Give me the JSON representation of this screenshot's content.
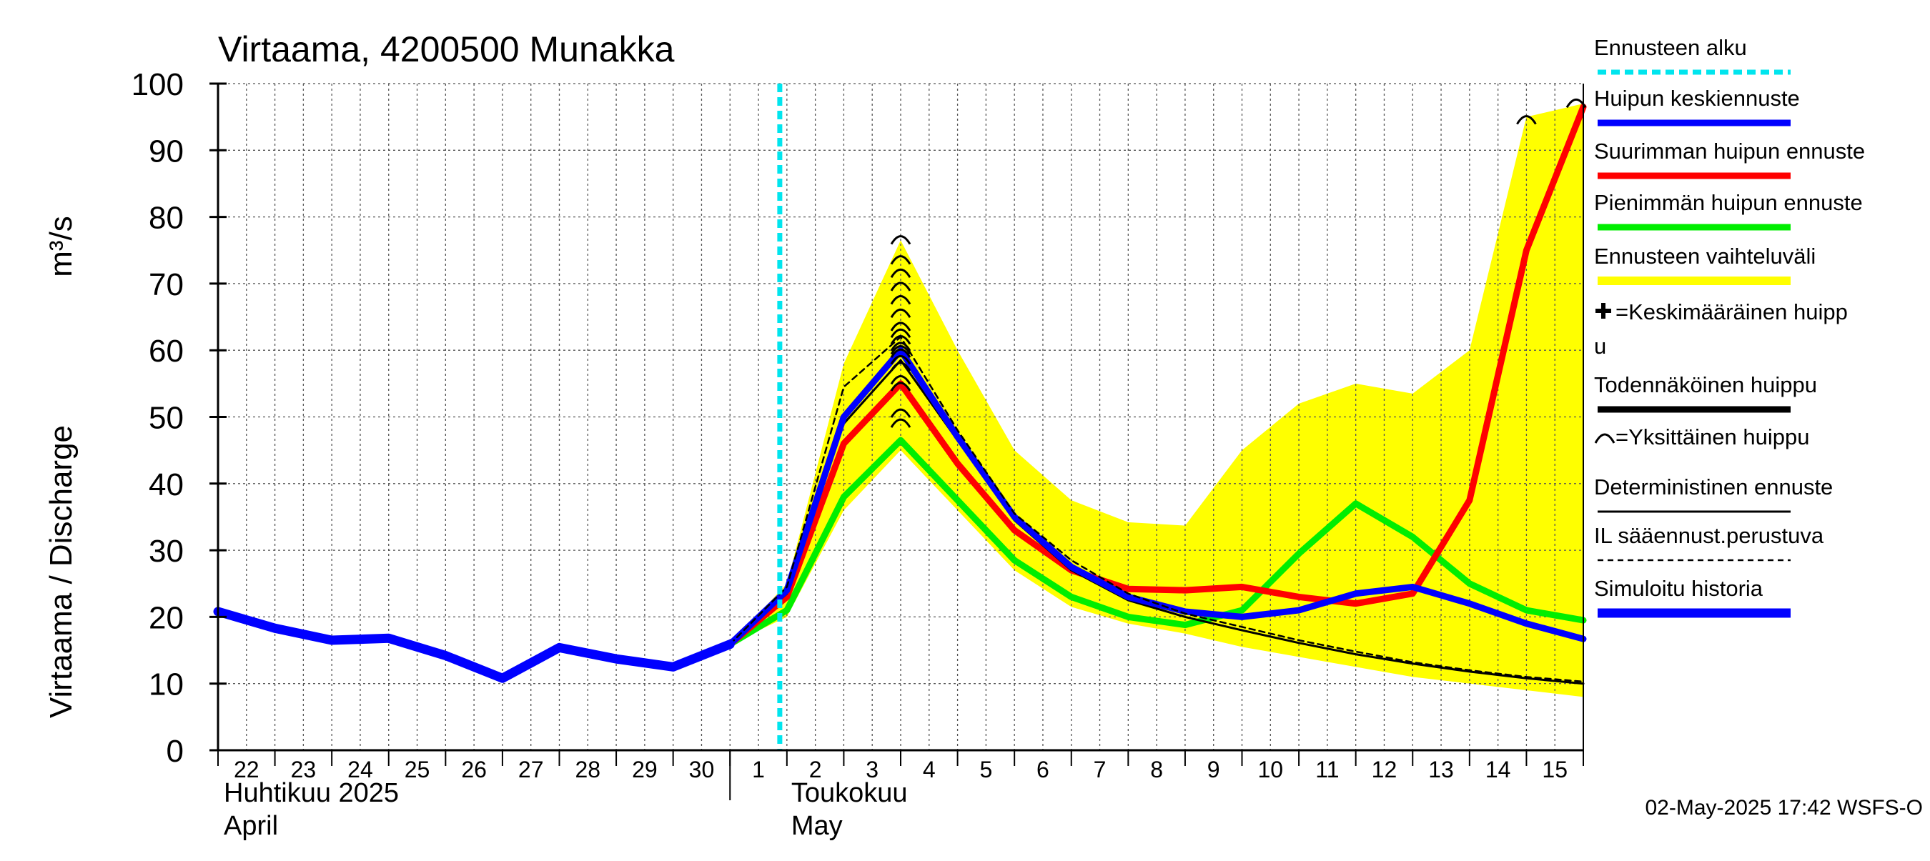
{
  "chart_data": {
    "type": "line",
    "title": "Virtaama, 4200500 Munakka",
    "ylabel": "Virtaama / Discharge",
    "yunit": "m³/s",
    "ylim": [
      0,
      100
    ],
    "yticks": [
      0,
      10,
      20,
      30,
      40,
      50,
      60,
      70,
      80,
      90,
      100
    ],
    "x_start": "2025-04-22",
    "x_end": "2025-05-16",
    "xtick_labels": [
      "22",
      "23",
      "24",
      "25",
      "26",
      "27",
      "28",
      "29",
      "30",
      "1",
      "2",
      "3",
      "4",
      "5",
      "6",
      "7",
      "8",
      "9",
      "10",
      "11",
      "12",
      "13",
      "14",
      "15"
    ],
    "month_labels": [
      {
        "line1": "Huhtikuu  2025",
        "line2": "April"
      },
      {
        "line1": "Toukokuu",
        "line2": "May"
      }
    ],
    "grid": true,
    "legend_position": "right",
    "forecast_start": "2025-05-01T21:00",
    "series": [
      {
        "name": "Simuloitu historia",
        "color": "#0000ff",
        "x": [
          "2025-04-22",
          "2025-04-23",
          "2025-04-24",
          "2025-04-25",
          "2025-04-26",
          "2025-04-27",
          "2025-04-28",
          "2025-04-29",
          "2025-04-30",
          "2025-05-01"
        ],
        "y": [
          20.8,
          18.3,
          16.5,
          16.8,
          14.2,
          10.8,
          15.4,
          13.7,
          12.5,
          15.9
        ]
      },
      {
        "name": "Huipun keskiennuste",
        "color": "#0000ff",
        "x": [
          "2025-05-01",
          "2025-05-02",
          "2025-05-03",
          "2025-05-04",
          "2025-05-05",
          "2025-05-06",
          "2025-05-07",
          "2025-05-08",
          "2025-05-09",
          "2025-05-10",
          "2025-05-11",
          "2025-05-12",
          "2025-05-13",
          "2025-05-14",
          "2025-05-15",
          "2025-05-16"
        ],
        "y": [
          15.9,
          24,
          50,
          60,
          47,
          35,
          27.5,
          23,
          20.8,
          20,
          21,
          23.5,
          24.5,
          22,
          19,
          16.7
        ]
      },
      {
        "name": "Suurimman huipun ennuste",
        "color": "#ff0000",
        "x": [
          "2025-05-01",
          "2025-05-02",
          "2025-05-03",
          "2025-05-04",
          "2025-05-05",
          "2025-05-06",
          "2025-05-07",
          "2025-05-08",
          "2025-05-09",
          "2025-05-10",
          "2025-05-11",
          "2025-05-12",
          "2025-05-13",
          "2025-05-14",
          "2025-05-15",
          "2025-05-16"
        ],
        "y": [
          15.9,
          23,
          46,
          55,
          43,
          33,
          27,
          24.2,
          24,
          24.5,
          23,
          22,
          23.5,
          37.5,
          75,
          96.5
        ]
      },
      {
        "name": "Pienimmän huipun ennuste",
        "color": "#00ee00",
        "x": [
          "2025-05-01",
          "2025-05-02",
          "2025-05-03",
          "2025-05-04",
          "2025-05-05",
          "2025-05-06",
          "2025-05-07",
          "2025-05-08",
          "2025-05-09",
          "2025-05-10",
          "2025-05-11",
          "2025-05-12",
          "2025-05-13",
          "2025-05-14",
          "2025-05-15",
          "2025-05-16"
        ],
        "y": [
          15.9,
          21,
          38,
          46.5,
          37.5,
          28.5,
          23,
          20,
          18.8,
          21,
          29.5,
          37,
          32,
          25,
          21,
          19.5
        ]
      },
      {
        "name": "Todennäköinen huippu",
        "color": "#000000",
        "x": [
          "2025-05-01",
          "2025-05-02",
          "2025-05-03",
          "2025-05-04",
          "2025-05-05",
          "2025-05-06",
          "2025-05-07",
          "2025-05-08",
          "2025-05-09",
          "2025-05-10",
          "2025-05-11",
          "2025-05-12",
          "2025-05-13",
          "2025-05-14",
          "2025-05-15",
          "2025-05-16"
        ],
        "y": [
          15.9,
          23.5,
          49,
          58.5,
          46.5,
          34.5,
          27,
          22.5,
          20,
          18,
          16.1,
          14.4,
          13,
          11.8,
          10.8,
          10
        ]
      },
      {
        "name": "IL sääennust.perustuva",
        "color": "#000000",
        "x": [
          "2025-05-01",
          "2025-05-02",
          "2025-05-03",
          "2025-05-04",
          "2025-05-05",
          "2025-05-06",
          "2025-05-07",
          "2025-05-08",
          "2025-05-09",
          "2025-05-10",
          "2025-05-11",
          "2025-05-12",
          "2025-05-13",
          "2025-05-14",
          "2025-05-15",
          "2025-05-16"
        ],
        "y": [
          15.9,
          24.5,
          54.5,
          62,
          48,
          35.5,
          28.5,
          23.5,
          20.5,
          18.5,
          16.5,
          14.8,
          13.2,
          12,
          11,
          10.3
        ]
      }
    ],
    "range_band": {
      "name": "Ennusteen vaihteluväli",
      "color": "#ffff00",
      "x": [
        "2025-05-01",
        "2025-05-02",
        "2025-05-03",
        "2025-05-04",
        "2025-05-05",
        "2025-05-06",
        "2025-05-07",
        "2025-05-08",
        "2025-05-09",
        "2025-05-10",
        "2025-05-11",
        "2025-05-12",
        "2025-05-13",
        "2025-05-14",
        "2025-05-15",
        "2025-05-16"
      ],
      "upper": [
        15.9,
        25,
        58,
        76.5,
        60,
        45,
        37.5,
        34.2,
        33.7,
        45,
        52,
        55,
        53.5,
        60,
        95,
        97
      ],
      "lower": [
        15.9,
        20,
        36,
        45,
        36,
        27,
        21.5,
        19,
        17.5,
        15.5,
        14,
        12.5,
        11,
        10,
        9,
        8
      ]
    },
    "individual_peaks": {
      "name": "Yksittäinen huippu",
      "x": [
        "2025-05-04",
        "2025-05-04",
        "2025-05-04",
        "2025-05-04",
        "2025-05-04",
        "2025-05-04",
        "2025-05-04",
        "2025-05-04",
        "2025-05-04",
        "2025-05-04",
        "2025-05-04",
        "2025-05-04",
        "2025-05-04",
        "2025-05-04",
        "2025-05-04",
        "2025-05-04",
        "2025-05-04",
        "2025-05-04",
        "2025-05-15",
        "2025-05-16"
      ],
      "y": [
        77,
        74,
        72,
        70,
        68,
        66,
        64,
        63,
        62,
        61,
        60.5,
        60,
        59,
        58,
        56,
        55,
        51,
        49.5,
        95,
        97.5
      ]
    }
  },
  "legend": [
    {
      "label": "Ennusteen alku",
      "style": "dotted",
      "color": "#00e5ee"
    },
    {
      "label": "Huipun keskiennuste",
      "style": "solid",
      "color": "#0000ff"
    },
    {
      "label": "Suurimman huipun ennuste",
      "style": "solid",
      "color": "#ff0000"
    },
    {
      "label": "Pienimmän huipun ennuste",
      "style": "solid",
      "color": "#00ee00"
    },
    {
      "label": "Ennusteen vaihteluväli",
      "style": "band",
      "color": "#ffff00"
    },
    {
      "label": "=Keskimääräinen huipp",
      "label2": "u",
      "style": "plus-marker",
      "color": "#000000"
    },
    {
      "label": "Todennäköinen huippu",
      "style": "solid",
      "color": "#000000"
    },
    {
      "label": "=Yksittäinen huippu",
      "style": "arc-marker",
      "color": "#000000"
    },
    {
      "label": "Deterministinen ennuste",
      "style": "thin",
      "color": "#000000"
    },
    {
      "label": "IL sääennust.perustuva",
      "style": "dashed",
      "color": "#000000"
    },
    {
      "label": "Simuloitu historia",
      "style": "thick",
      "color": "#0000ff"
    }
  ],
  "timestamp": "02-May-2025 17:42 WSFS-O"
}
